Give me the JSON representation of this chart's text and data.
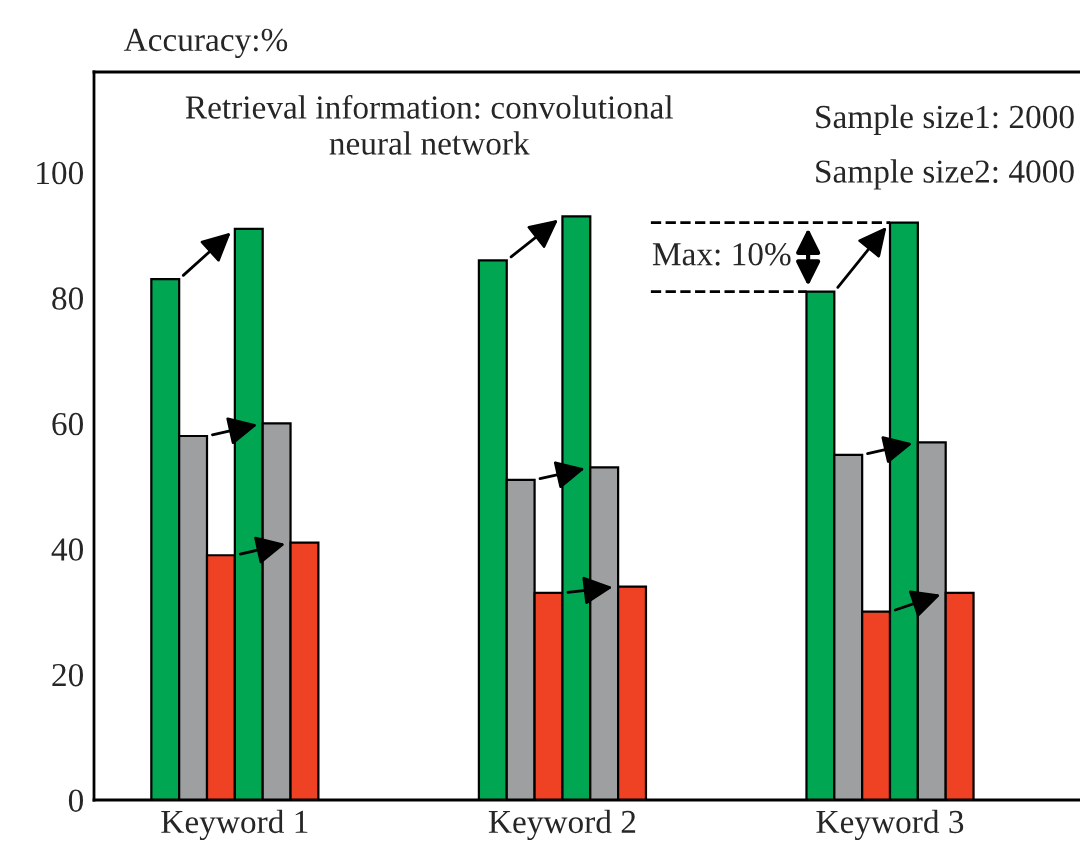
{
  "chart_data": {
    "type": "bar",
    "title": "Retrieval information: convolutional\nneural network",
    "ylabel": "Accuracy:%",
    "categories": [
      "Keyword 1",
      "Keyword 2",
      "Keyword 3"
    ],
    "series": [
      {
        "color": "#00a651",
        "values": [
          83,
          86,
          81
        ]
      },
      {
        "color": "#9d9fa0",
        "values": [
          58,
          51,
          55
        ]
      },
      {
        "color": "#ef4123",
        "values": [
          39,
          33,
          30
        ]
      },
      {
        "color": "#00a651",
        "values": [
          91,
          93,
          92
        ]
      },
      {
        "color": "#9d9fa0",
        "values": [
          60,
          53,
          57
        ]
      },
      {
        "color": "#ef4123",
        "values": [
          41,
          34,
          33
        ]
      }
    ],
    "annotations": [
      "Sample size1: 2000",
      "Sample size2: 4000",
      {
        "text": "Max: 10%",
        "x": "Keyword 3",
        "y": 86.5
      }
    ],
    "ylim": [
      0,
      116
    ],
    "yticks": [
      0,
      20,
      40,
      60,
      80,
      100
    ],
    "grid": false,
    "legend": false
  }
}
